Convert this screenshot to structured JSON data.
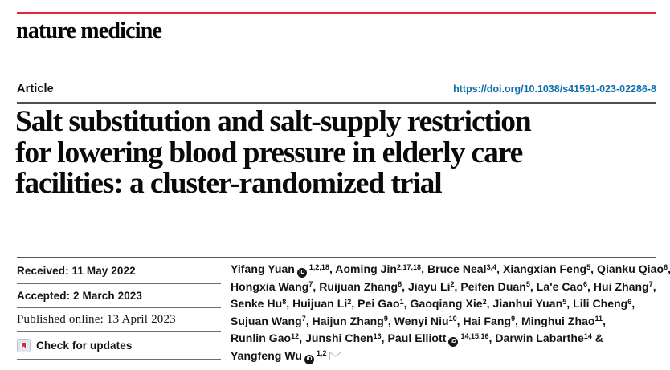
{
  "colors": {
    "accent_red": "#e5273d",
    "doi_blue": "#0f6fad",
    "rule_dark": "#4f4f4f",
    "rule_light": "#6f6f6f",
    "text_main": "#131313",
    "crossmark_red": "#d22a35",
    "crossmark_bg": "#e4e9f0",
    "crossmark_border": "#b8c1cc",
    "orcid_dark": "#161616"
  },
  "brand": {
    "logo": "nature medicine"
  },
  "header": {
    "article_label": "Article",
    "doi": "https://doi.org/10.1038/s41591-023-02286-8"
  },
  "title": {
    "lines": [
      "Salt substitution and salt-supply restriction",
      "for lowering blood pressure in elderly care",
      "facilities: a cluster-randomized trial"
    ]
  },
  "dates": {
    "received": "Received: 11 May 2022",
    "accepted": "Accepted: 2 March 2023",
    "published": "Published online: 13 April 2023"
  },
  "check_for_updates": {
    "label": "Check for updates",
    "icon": "crossmark-icon"
  },
  "icons": {
    "orcid_text": "iD",
    "envelope": "email-envelope-icon"
  },
  "authors": {
    "lines": [
      [
        {
          "t": "Yifang Yuan"
        },
        {
          "icon": "orcid"
        },
        {
          "sup": "1,2,18"
        },
        {
          "t": ", Aoming Jin"
        },
        {
          "sup": "2,17,18"
        },
        {
          "t": ", Bruce Neal"
        },
        {
          "sup": "3,4"
        },
        {
          "t": ", Xiangxian Feng"
        },
        {
          "sup": "5"
        },
        {
          "t": ", Qianku Qiao"
        },
        {
          "sup": "6"
        },
        {
          "t": ","
        }
      ],
      [
        {
          "t": "Hongxia Wang"
        },
        {
          "sup": "7"
        },
        {
          "t": ", Ruijuan Zhang"
        },
        {
          "sup": "8"
        },
        {
          "t": ", Jiayu Li"
        },
        {
          "sup": "2"
        },
        {
          "t": ", Peifen Duan"
        },
        {
          "sup": "5"
        },
        {
          "t": ", La'e Cao"
        },
        {
          "sup": "6"
        },
        {
          "t": ", Hui Zhang"
        },
        {
          "sup": "7"
        },
        {
          "t": ","
        }
      ],
      [
        {
          "t": "Senke Hu"
        },
        {
          "sup": "8"
        },
        {
          "t": ", Huijuan Li"
        },
        {
          "sup": "2"
        },
        {
          "t": ", Pei Gao"
        },
        {
          "sup": "1"
        },
        {
          "t": ", Gaoqiang Xie"
        },
        {
          "sup": "2"
        },
        {
          "t": ", Jianhui Yuan"
        },
        {
          "sup": "5"
        },
        {
          "t": ", Lili Cheng"
        },
        {
          "sup": "6"
        },
        {
          "t": ","
        }
      ],
      [
        {
          "t": "Sujuan Wang"
        },
        {
          "sup": "7"
        },
        {
          "t": ", Haijun Zhang"
        },
        {
          "sup": "9"
        },
        {
          "t": ", Wenyi Niu"
        },
        {
          "sup": "10"
        },
        {
          "t": ", Hai Fang"
        },
        {
          "sup": "9"
        },
        {
          "t": ", Minghui Zhao"
        },
        {
          "sup": "11"
        },
        {
          "t": ","
        }
      ],
      [
        {
          "t": "Runlin Gao"
        },
        {
          "sup": "12"
        },
        {
          "t": ", Junshi Chen"
        },
        {
          "sup": "13"
        },
        {
          "t": ", Paul Elliott"
        },
        {
          "icon": "orcid"
        },
        {
          "sup": "14,15,16"
        },
        {
          "t": ", Darwin Labarthe"
        },
        {
          "sup": "14"
        },
        {
          "t": " &"
        }
      ],
      [
        {
          "t": "Yangfeng Wu"
        },
        {
          "icon": "orcid"
        },
        {
          "sup": "1,2"
        },
        {
          "icon": "envelope"
        }
      ]
    ]
  }
}
